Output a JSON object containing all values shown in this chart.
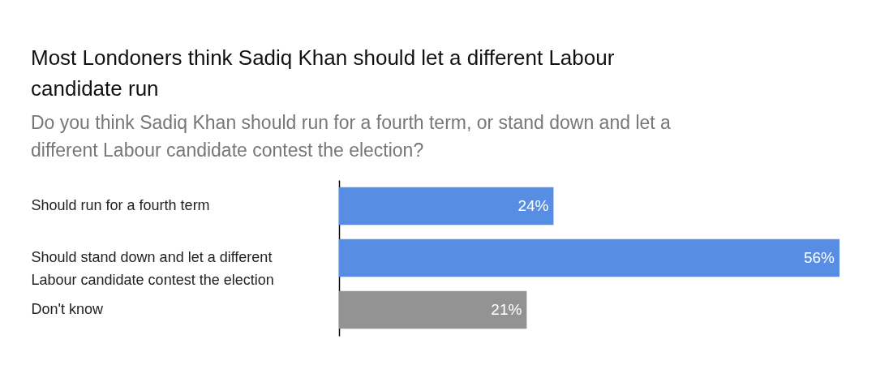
{
  "chart_data": {
    "type": "bar",
    "orientation": "horizontal",
    "title": "Most Londoners think Sadiq Khan should let a different Labour candidate run",
    "subtitle": "Do you think Sadiq Khan should run for a fourth term, or stand down and let a different Labour candidate contest the election?",
    "categories": [
      "Should run for a fourth term",
      "Should stand down and let a different Labour candidate contest the election",
      "Don't know"
    ],
    "values": [
      24,
      56,
      21
    ],
    "colors": [
      "#578ee3",
      "#578ee3",
      "#939393"
    ],
    "value_labels": [
      "24%",
      "56%",
      "21%"
    ]
  }
}
